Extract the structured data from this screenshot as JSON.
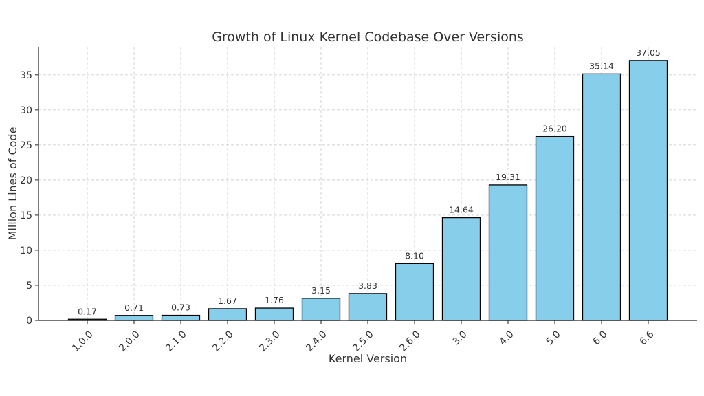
{
  "chart_data": {
    "type": "bar",
    "title": "Growth of Linux Kernel Codebase Over Versions",
    "xlabel": "Kernel Version",
    "ylabel": "Million Lines of Code",
    "categories": [
      "1.0.0",
      "2.0.0",
      "2.1.0",
      "2.2.0",
      "2.3.0",
      "2.4.0",
      "2.5.0",
      "2.6.0",
      "3.0",
      "4.0",
      "5.0",
      "6.0",
      "6.6"
    ],
    "values": [
      0.17,
      0.71,
      0.73,
      1.67,
      1.76,
      3.15,
      3.83,
      8.1,
      14.64,
      19.31,
      26.2,
      35.14,
      37.05
    ],
    "value_labels": [
      "0.17",
      "0.71",
      "0.73",
      "1.67",
      "1.76",
      "3.15",
      "3.83",
      "8.10",
      "14.64",
      "19.31",
      "26.20",
      "35.14",
      "37.05"
    ],
    "yticks": [
      0,
      5,
      10,
      15,
      20,
      25,
      30,
      35
    ],
    "ylim": [
      0,
      38.9
    ],
    "grid": true,
    "bar_color": "#87CEEB",
    "edge_color": "#000000"
  }
}
